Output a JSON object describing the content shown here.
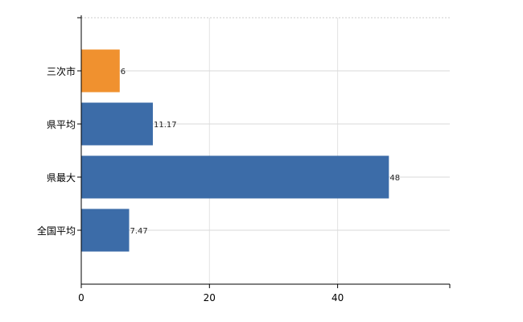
{
  "chart_data": {
    "type": "bar",
    "orientation": "horizontal",
    "categories": [
      "三次市",
      "県平均",
      "県最大",
      "全国平均"
    ],
    "values": [
      6,
      11.17,
      48,
      7.47
    ],
    "value_labels": [
      "6",
      "11.17",
      "48",
      "7.47"
    ],
    "bar_colors": [
      "#F0912F",
      "#3C6CA8",
      "#3C6CA8",
      "#3C6CA8"
    ],
    "title": "",
    "xlabel": "",
    "ylabel": "",
    "xlim": [
      0,
      57.5
    ],
    "xticks": [
      0,
      20,
      40
    ],
    "xtick_labels": [
      "0",
      "20",
      "40"
    ],
    "grid": true,
    "legend": "none"
  }
}
